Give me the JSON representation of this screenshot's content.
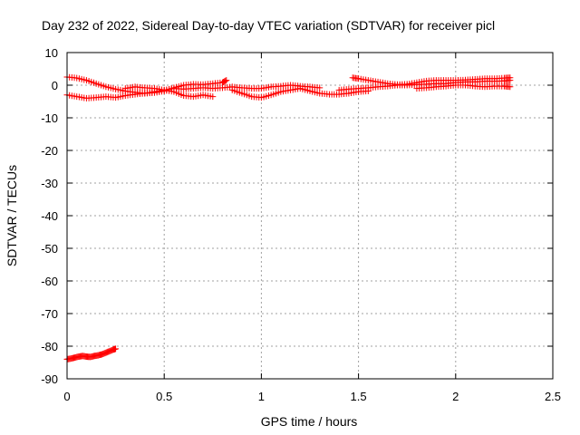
{
  "chart_data": {
    "type": "scatter",
    "title": "Day 232 of 2022, Sidereal Day-to-day VTEC variation (SDTVAR) for receiver picl",
    "xlabel": "GPS time / hours",
    "ylabel": "SDTVAR / TECUs",
    "xlim": [
      0,
      2.5
    ],
    "ylim": [
      -90,
      10
    ],
    "xticks": [
      0,
      0.5,
      1,
      1.5,
      2,
      2.5
    ],
    "xtick_labels": [
      "0",
      "0.5",
      "1",
      "1.5",
      "2",
      "2.5"
    ],
    "yticks": [
      10,
      0,
      -10,
      -20,
      -30,
      -40,
      -50,
      -60,
      -70,
      -80,
      -90
    ],
    "ytick_labels": [
      "10",
      "0",
      "-10",
      "-20",
      "-30",
      "-40",
      "-50",
      "-60",
      "-70",
      "-80",
      "-90"
    ],
    "grid": true,
    "marker": "+",
    "marker_color": "#ff0000",
    "series": [
      {
        "name": "track-upper-left",
        "x": [
          0.0,
          0.05,
          0.1,
          0.15,
          0.2,
          0.25,
          0.3,
          0.35,
          0.4,
          0.45,
          0.5,
          0.55,
          0.6,
          0.65,
          0.7,
          0.75,
          0.8,
          0.82
        ],
        "y": [
          2.5,
          2.2,
          1.5,
          0.5,
          -0.5,
          -1.2,
          -1.8,
          -2.2,
          -2.5,
          -2.3,
          -1.8,
          -0.8,
          0.0,
          0.3,
          0.2,
          0.5,
          0.8,
          1.5
        ]
      },
      {
        "name": "track-lower-left",
        "x": [
          0.0,
          0.05,
          0.1,
          0.15,
          0.2,
          0.25,
          0.3,
          0.35,
          0.4,
          0.45,
          0.5,
          0.55,
          0.6,
          0.65,
          0.7,
          0.75
        ],
        "y": [
          -3.0,
          -3.5,
          -4.0,
          -3.8,
          -3.5,
          -3.8,
          -3.2,
          -2.8,
          -2.5,
          -2.0,
          -1.5,
          -2.0,
          -3.2,
          -3.5,
          -3.0,
          -3.5
        ]
      },
      {
        "name": "track-middle-a",
        "x": [
          0.3,
          0.35,
          0.4,
          0.45,
          0.5,
          0.55,
          0.6,
          0.65,
          0.7,
          0.75,
          0.8,
          0.85,
          0.9,
          0.95,
          1.0,
          1.05,
          1.1,
          1.15,
          1.2,
          1.25,
          1.3
        ],
        "y": [
          -1.0,
          -0.5,
          -0.8,
          -1.0,
          -1.5,
          -1.0,
          -1.2,
          -1.0,
          -0.8,
          -1.0,
          -0.8,
          -0.5,
          -0.8,
          -1.0,
          -1.0,
          -0.5,
          -0.3,
          0.0,
          -0.3,
          -0.5,
          -0.8
        ]
      },
      {
        "name": "track-middle-b",
        "x": [
          0.85,
          0.9,
          0.95,
          1.0,
          1.05,
          1.1,
          1.15,
          1.2,
          1.25,
          1.3,
          1.35,
          1.4,
          1.45,
          1.5,
          1.55
        ],
        "y": [
          -1.5,
          -2.5,
          -3.5,
          -3.8,
          -3.0,
          -2.0,
          -1.5,
          -1.0,
          -1.8,
          -2.5,
          -2.8,
          -2.8,
          -2.5,
          -2.0,
          -1.8
        ]
      },
      {
        "name": "track-right-upper",
        "x": [
          1.47,
          1.5,
          1.55,
          1.6,
          1.65,
          1.7,
          1.75,
          1.8,
          1.85,
          1.9,
          1.95,
          2.0,
          2.05,
          2.1,
          2.15,
          2.2,
          2.25,
          2.28
        ],
        "y": [
          2.3,
          2.0,
          1.5,
          1.0,
          0.5,
          0.2,
          0.3,
          0.8,
          1.3,
          1.5,
          1.5,
          1.5,
          1.6,
          1.8,
          2.0,
          2.0,
          2.2,
          2.3
        ]
      },
      {
        "name": "track-right-middle",
        "x": [
          1.4,
          1.45,
          1.5,
          1.55,
          1.6,
          1.65,
          1.7,
          1.75,
          1.8,
          1.85,
          1.9,
          1.95,
          2.0,
          2.05,
          2.1,
          2.15,
          2.2,
          2.25,
          2.28
        ],
        "y": [
          -1.5,
          -1.2,
          -1.0,
          -0.8,
          -0.5,
          -0.3,
          0.0,
          0.0,
          0.2,
          0.3,
          0.5,
          0.5,
          0.8,
          1.0,
          1.0,
          1.2,
          1.2,
          1.3,
          1.5
        ]
      },
      {
        "name": "track-right-lower",
        "x": [
          1.8,
          1.85,
          1.9,
          1.95,
          2.0,
          2.05,
          2.1,
          2.15,
          2.2,
          2.25,
          2.28
        ],
        "y": [
          -1.0,
          -0.8,
          -0.5,
          -0.3,
          0.0,
          0.0,
          -0.3,
          -0.5,
          -0.3,
          -0.3,
          -0.5
        ]
      },
      {
        "name": "track-outlier",
        "x": [
          0.0,
          0.02,
          0.04,
          0.06,
          0.08,
          0.1,
          0.12,
          0.14,
          0.16,
          0.18,
          0.2,
          0.22,
          0.24,
          0.25
        ],
        "y": [
          -84.0,
          -83.8,
          -83.5,
          -83.2,
          -83.0,
          -83.2,
          -83.3,
          -83.0,
          -82.8,
          -82.5,
          -82.0,
          -81.5,
          -81.0,
          -80.8
        ]
      }
    ]
  }
}
